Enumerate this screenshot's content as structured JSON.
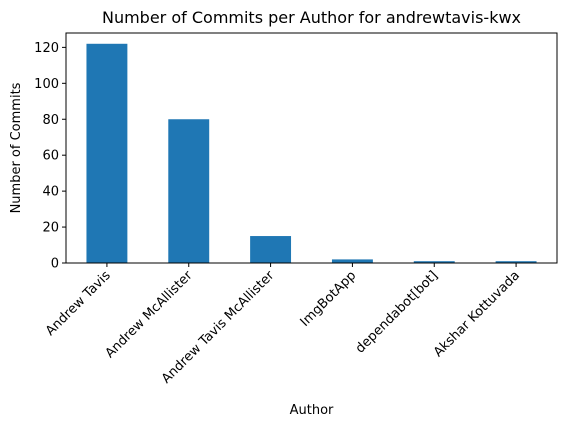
{
  "chart_data": {
    "type": "bar",
    "title": "Number of Commits per Author for andrewtavis-kwx",
    "xlabel": "Author",
    "ylabel": "Number of Commits",
    "categories": [
      "Andrew Tavis",
      "Andrew McAllister",
      "Andrew Tavis McAllister",
      "ImgBotApp",
      "dependabot[bot]",
      "Akshar Kottuvada"
    ],
    "values": [
      122,
      80,
      15,
      2,
      1,
      1
    ],
    "ylim": [
      0,
      128
    ],
    "yticks": [
      0,
      20,
      40,
      60,
      80,
      100,
      120
    ],
    "grid": false,
    "colors": {
      "bar": "#1f77b4",
      "axis": "#000000"
    }
  }
}
